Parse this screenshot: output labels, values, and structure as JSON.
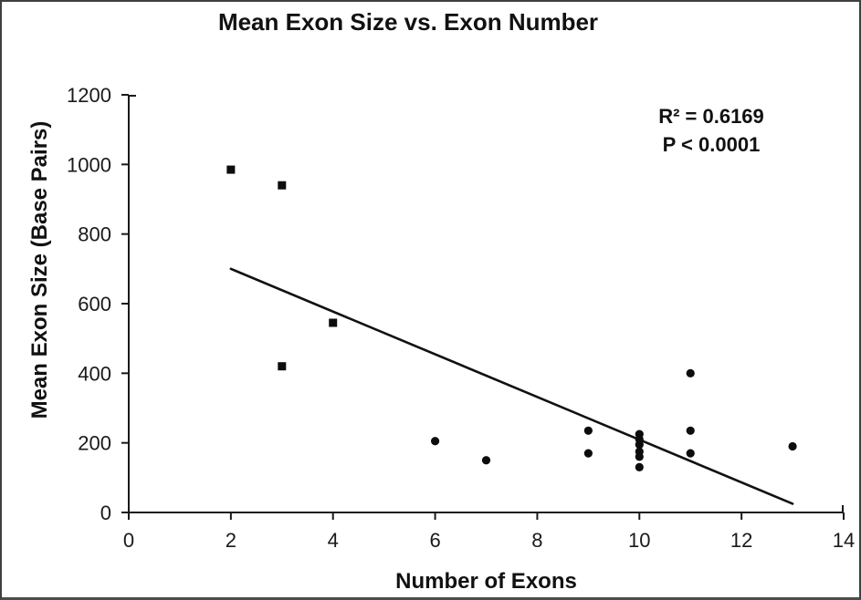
{
  "figure": {
    "title": "Mean Exon Size vs. Exon Number"
  },
  "chart_data": {
    "type": "scatter",
    "title": "Mean Exon Size vs. Exon Number",
    "xlabel": "Number of Exons",
    "ylabel": "Mean Exon Size (Base Pairs)",
    "xlim": [
      0,
      14
    ],
    "ylim": [
      0,
      1200
    ],
    "x_ticks": [
      0,
      2,
      4,
      6,
      8,
      10,
      12,
      14
    ],
    "y_ticks": [
      0,
      200,
      400,
      600,
      800,
      1000,
      1200
    ],
    "grid": false,
    "legend": "none",
    "annotations": [
      "R² = 0.6169",
      "P < 0.0001"
    ],
    "series": [
      {
        "name": "square-markers",
        "marker": "square",
        "points": [
          [
            2,
            985
          ],
          [
            3,
            940
          ],
          [
            3,
            420
          ],
          [
            4,
            545
          ]
        ]
      },
      {
        "name": "circle-markers",
        "marker": "circle",
        "points": [
          [
            6,
            205
          ],
          [
            7,
            150
          ],
          [
            9,
            235
          ],
          [
            9,
            170
          ],
          [
            10,
            225
          ],
          [
            10,
            210
          ],
          [
            10,
            195
          ],
          [
            10,
            175
          ],
          [
            10,
            160
          ],
          [
            10,
            130
          ],
          [
            11,
            400
          ],
          [
            11,
            235
          ],
          [
            11,
            170
          ],
          [
            13,
            190
          ]
        ]
      }
    ],
    "trendline": {
      "x1": 2,
      "y1": 700,
      "x2": 13,
      "y2": 25
    },
    "colors": {
      "marker": "#0d0d0d",
      "trendline": "#111111",
      "axis": "#1a1a1a",
      "text": "#111111"
    }
  }
}
